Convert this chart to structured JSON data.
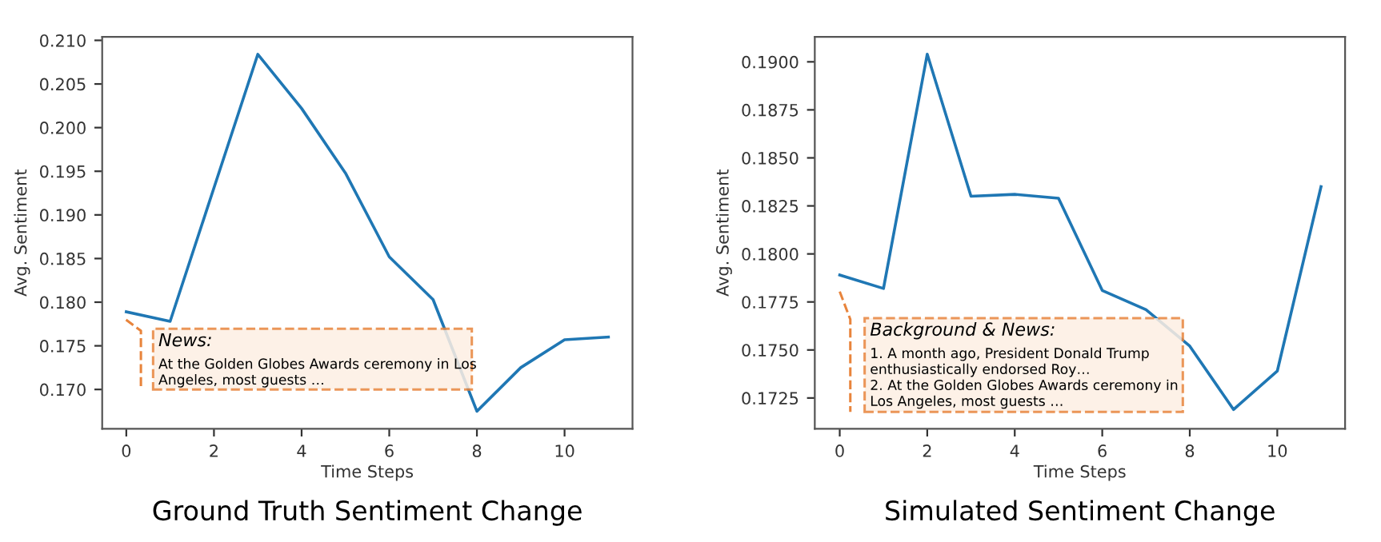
{
  "chart_data": [
    {
      "type": "line",
      "title": "Ground Truth Sentiment Change",
      "xlabel": "Time Steps",
      "ylabel": "Avg. Sentiment",
      "x": [
        0,
        1,
        2,
        3,
        4,
        5,
        6,
        7,
        8,
        9,
        10,
        11
      ],
      "series": [
        {
          "color": "#1f77b4",
          "values": [
            0.1789,
            0.1778,
            0.1931,
            0.2084,
            0.2022,
            0.1948,
            0.1852,
            0.1803,
            0.1675,
            0.1725,
            0.1757,
            0.176
          ]
        }
      ],
      "xlim": [
        -0.55,
        11.55
      ],
      "xticks": [
        0,
        2,
        4,
        6,
        8,
        10
      ],
      "ylim": [
        0.1655,
        0.2104
      ],
      "yticks": [
        {
          "value": 0.17,
          "label": "0.170"
        },
        {
          "value": 0.175,
          "label": "0.175"
        },
        {
          "value": 0.18,
          "label": "0.180"
        },
        {
          "value": 0.185,
          "label": "0.185"
        },
        {
          "value": 0.19,
          "label": "0.190"
        },
        {
          "value": 0.195,
          "label": "0.195"
        },
        {
          "value": 0.2,
          "label": "0.200"
        },
        {
          "value": 0.205,
          "label": "0.205"
        },
        {
          "value": 0.21,
          "label": "0.210"
        }
      ],
      "annotations": [
        "News:",
        "At the Golden Globes Awards ceremony in Los\nAngeles, most guests …"
      ],
      "grid": false,
      "legend": false
    },
    {
      "type": "line",
      "title": "Simulated Sentiment Change",
      "xlabel": "Time Steps",
      "ylabel": "Avg. Sentiment",
      "x": [
        0,
        1,
        2,
        3,
        4,
        5,
        6,
        7,
        8,
        9,
        10,
        11
      ],
      "series": [
        {
          "color": "#1f77b4",
          "values": [
            0.1789,
            0.1782,
            0.1904,
            0.183,
            0.1831,
            0.1829,
            0.1781,
            0.1771,
            0.1752,
            0.1719,
            0.1739,
            0.1835
          ]
        }
      ],
      "xlim": [
        -0.57,
        11.55
      ],
      "xticks": [
        0,
        2,
        4,
        6,
        8,
        10
      ],
      "ylim": [
        0.1709,
        0.1913
      ],
      "yticks": [
        {
          "value": 0.1725,
          "label": "0.1725"
        },
        {
          "value": 0.175,
          "label": "0.1750"
        },
        {
          "value": 0.1775,
          "label": "0.1775"
        },
        {
          "value": 0.18,
          "label": "0.1800"
        },
        {
          "value": 0.1825,
          "label": "0.1825"
        },
        {
          "value": 0.185,
          "label": "0.1850"
        },
        {
          "value": 0.1875,
          "label": "0.1875"
        },
        {
          "value": 0.19,
          "label": "0.1900"
        }
      ],
      "annotations": [
        "Background & News:",
        "1. A month ago, President Donald Trump\nenthusiastically endorsed Roy…\n2. At the Golden Globes Awards ceremony in\nLos Angeles, most guests …"
      ],
      "grid": false,
      "legend": false
    }
  ]
}
